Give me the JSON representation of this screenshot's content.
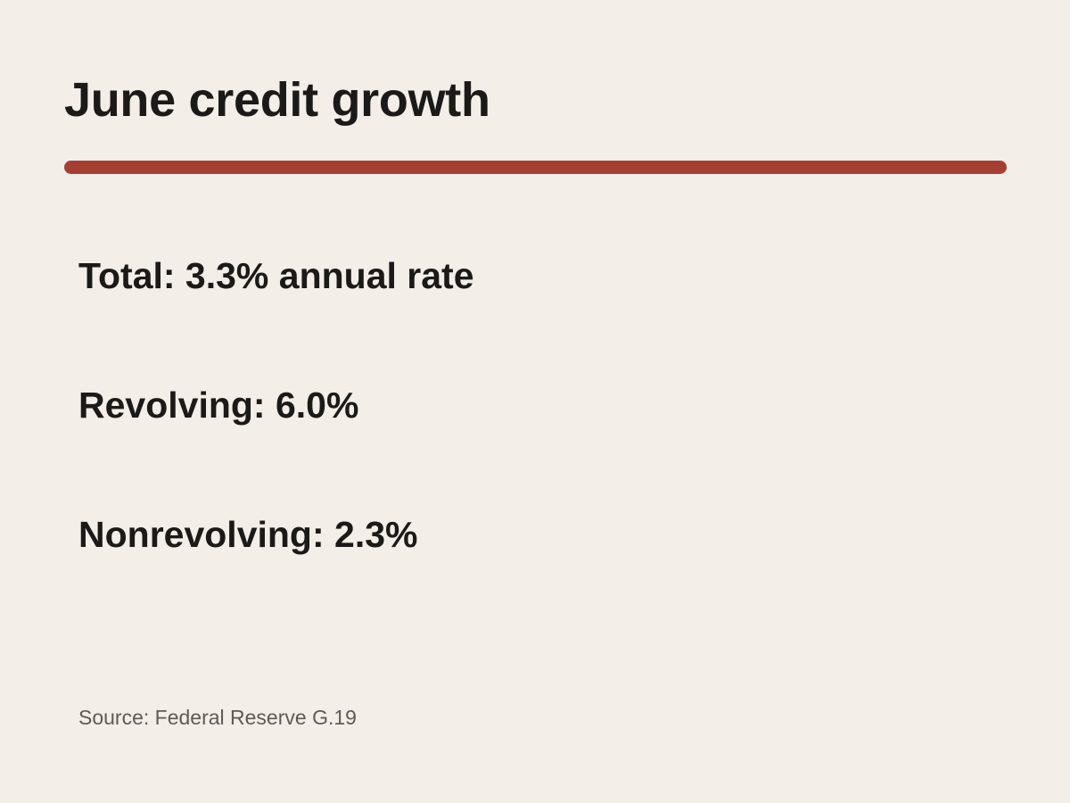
{
  "title": "June credit growth",
  "stats": [
    {
      "text": "Total: 3.3% annual rate"
    },
    {
      "text": "Revolving: 6.0%"
    },
    {
      "text": "Nonrevolving: 2.3%"
    }
  ],
  "source": "Source: Federal Reserve G.19",
  "colors": {
    "background": "#f3eee8",
    "accent_rule": "#a63f33",
    "text": "#1c1a18",
    "muted_text": "#5f5a55"
  }
}
